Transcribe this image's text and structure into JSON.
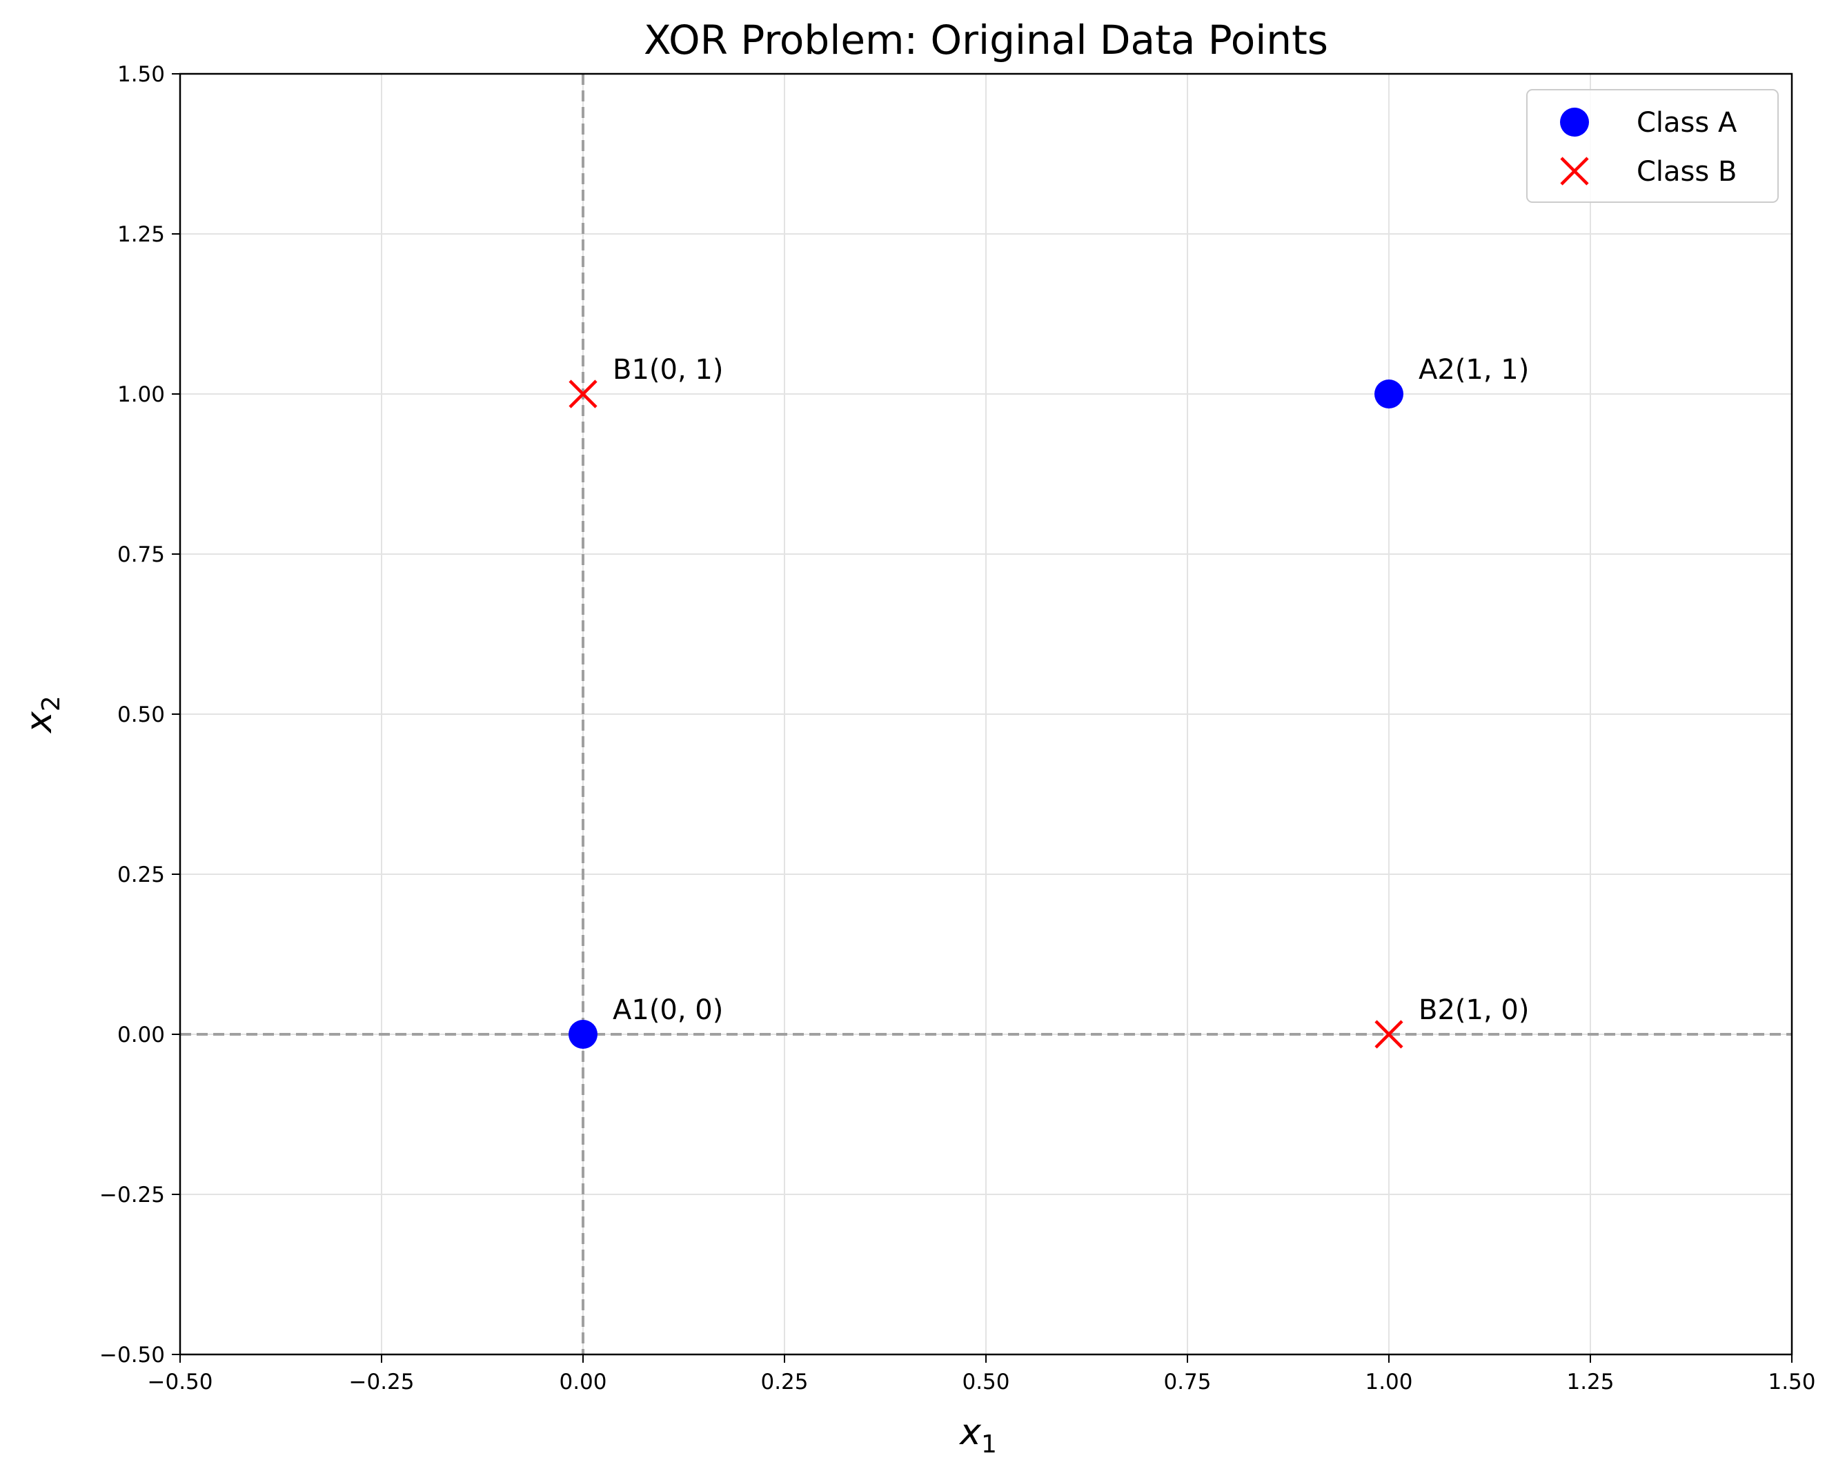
{
  "chart_data": {
    "type": "scatter",
    "title": "XOR Problem: Original Data Points",
    "xlabel": "x",
    "xlabel_sub": "1",
    "ylabel": "x",
    "ylabel_sub": "2",
    "xlim": [
      -0.5,
      1.5
    ],
    "ylim": [
      -0.5,
      1.5
    ],
    "xticks": [
      -0.5,
      -0.25,
      0.0,
      0.25,
      0.5,
      0.75,
      1.0,
      1.25,
      1.5
    ],
    "xtick_labels": [
      "−0.50",
      "−0.25",
      "0.00",
      "0.25",
      "0.50",
      "0.75",
      "1.00",
      "1.25",
      "1.50"
    ],
    "yticks": [
      -0.5,
      -0.25,
      0.0,
      0.25,
      0.5,
      0.75,
      1.0,
      1.25,
      1.5
    ],
    "ytick_labels": [
      "−0.50",
      "−0.25",
      "0.00",
      "0.25",
      "0.50",
      "0.75",
      "1.00",
      "1.25",
      "1.50"
    ],
    "grid": true,
    "reference_lines": {
      "x": 0,
      "y": 0,
      "style": "dashed",
      "color": "#a0a0a0"
    },
    "legend_position": "top-right",
    "series": [
      {
        "name": "Class A",
        "marker": "circle",
        "color": "#0000ff",
        "points": [
          {
            "x": 0,
            "y": 0,
            "label": "A1(0, 0)"
          },
          {
            "x": 1,
            "y": 1,
            "label": "A2(1, 1)"
          }
        ]
      },
      {
        "name": "Class B",
        "marker": "x",
        "color": "#ff0000",
        "points": [
          {
            "x": 0,
            "y": 1,
            "label": "B1(0, 1)"
          },
          {
            "x": 1,
            "y": 0,
            "label": "B2(1, 0)"
          }
        ]
      }
    ]
  }
}
